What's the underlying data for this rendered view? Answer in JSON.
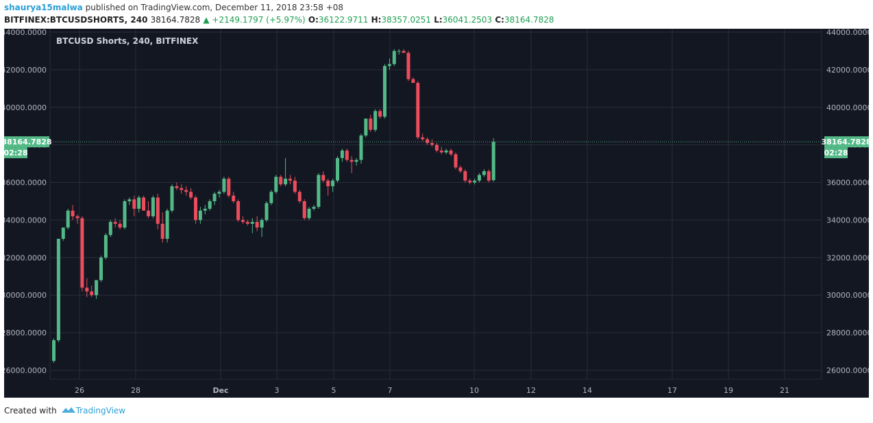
{
  "header": {
    "user": "shaurya15malwa",
    "published_text": "published on TradingView.com, December 11, 2018 23:58 +08",
    "symbol": "BITFINEX:BTCUSDSHORTS, 240",
    "last_price": "38164.7828",
    "change": "+2149.1797 (+5.97%)",
    "o_label": "O:",
    "o_value": "36122.9711",
    "h_label": "H:",
    "h_value": "38357.0251",
    "l_label": "L:",
    "l_value": "36041.2503",
    "c_label": "C:",
    "c_value": "38164.7828"
  },
  "footer": {
    "created_with": "Created with",
    "brand": "TradingView"
  },
  "colors": {
    "background": "#131722",
    "up": "#53b987",
    "down": "#eb4d5c",
    "grid": "#2a2e39",
    "text": "#b2b5be",
    "price_line": "#53b987"
  },
  "chart_data": {
    "type": "candlestick",
    "title": "BTCUSD Shorts, 240, BITFINEX",
    "ylim": [
      25500,
      44200
    ],
    "y_ticks": [
      "44000.0000",
      "42000.0000",
      "40000.0000",
      "38000.0000",
      "36000.0000",
      "34000.0000",
      "32000.0000",
      "30000.0000",
      "28000.0000",
      "26000.0000"
    ],
    "x_ticks": [
      "26",
      "28",
      "Dec",
      "3",
      "5",
      "7",
      "10",
      "12",
      "14",
      "17",
      "19",
      "21"
    ],
    "last_price_label": "38164.7828",
    "countdown_label": "02:28",
    "ohlc": [
      [
        26500,
        27700,
        26400,
        27600
      ],
      [
        27600,
        33000,
        27500,
        33000
      ],
      [
        33000,
        33600,
        32900,
        33600
      ],
      [
        33600,
        34600,
        33500,
        34500
      ],
      [
        34500,
        34800,
        34000,
        34200
      ],
      [
        34200,
        34300,
        33800,
        34100
      ],
      [
        34100,
        34200,
        30200,
        30400
      ],
      [
        30400,
        30900,
        29900,
        30200
      ],
      [
        30200,
        30500,
        29900,
        30000
      ],
      [
        30000,
        30800,
        29800,
        30800
      ],
      [
        30800,
        32100,
        30700,
        32000
      ],
      [
        32000,
        33300,
        31900,
        33200
      ],
      [
        33200,
        34000,
        33100,
        33900
      ],
      [
        33900,
        34100,
        33600,
        33800
      ],
      [
        33800,
        34000,
        33500,
        33600
      ],
      [
        33600,
        35100,
        33500,
        35000
      ],
      [
        35000,
        35200,
        34800,
        35100
      ],
      [
        35100,
        35300,
        34200,
        34600
      ],
      [
        34600,
        35300,
        34400,
        35200
      ],
      [
        35200,
        35300,
        34500,
        34500
      ],
      [
        34500,
        35000,
        34100,
        34200
      ],
      [
        34200,
        35300,
        34100,
        35200
      ],
      [
        35200,
        35400,
        33500,
        33800
      ],
      [
        33800,
        34400,
        32800,
        33000
      ],
      [
        33000,
        34600,
        32800,
        34500
      ],
      [
        34500,
        35900,
        34400,
        35800
      ],
      [
        35800,
        36000,
        35600,
        35700
      ],
      [
        35700,
        35900,
        35400,
        35600
      ],
      [
        35600,
        35800,
        35300,
        35500
      ],
      [
        35500,
        35700,
        35100,
        35200
      ],
      [
        35200,
        35300,
        33800,
        34000
      ],
      [
        34000,
        34700,
        33800,
        34500
      ],
      [
        34500,
        34800,
        34300,
        34600
      ],
      [
        34600,
        35100,
        34500,
        35000
      ],
      [
        35000,
        35500,
        34800,
        35400
      ],
      [
        35400,
        35600,
        35200,
        35500
      ],
      [
        35500,
        36300,
        35400,
        36200
      ],
      [
        36200,
        36300,
        35200,
        35300
      ],
      [
        35300,
        35500,
        34900,
        35000
      ],
      [
        35000,
        35100,
        33900,
        34000
      ],
      [
        34000,
        34200,
        33800,
        33900
      ],
      [
        33900,
        34000,
        33700,
        33800
      ],
      [
        33800,
        34100,
        33300,
        33900
      ],
      [
        33900,
        34200,
        33400,
        33600
      ],
      [
        33600,
        34100,
        33100,
        34000
      ],
      [
        34000,
        35000,
        33900,
        34900
      ],
      [
        34900,
        35600,
        34800,
        35500
      ],
      [
        35500,
        36400,
        35400,
        36300
      ],
      [
        36300,
        36400,
        35800,
        35900
      ],
      [
        35900,
        37300,
        35800,
        36200
      ],
      [
        36200,
        36400,
        35900,
        36100
      ],
      [
        36100,
        36300,
        35400,
        35500
      ],
      [
        35500,
        35600,
        34900,
        35000
      ],
      [
        35000,
        35100,
        34000,
        34100
      ],
      [
        34100,
        34700,
        34000,
        34600
      ],
      [
        34600,
        34800,
        34500,
        34700
      ],
      [
        34700,
        36500,
        34600,
        36400
      ],
      [
        36400,
        36600,
        36000,
        36100
      ],
      [
        36100,
        36200,
        35300,
        35800
      ],
      [
        35800,
        36200,
        35500,
        36100
      ],
      [
        36100,
        37400,
        36000,
        37300
      ],
      [
        37300,
        37800,
        37100,
        37700
      ],
      [
        37700,
        37800,
        37100,
        37200
      ],
      [
        37200,
        37400,
        36500,
        37100
      ],
      [
        37100,
        37300,
        36900,
        37200
      ],
      [
        37200,
        38600,
        37000,
        38500
      ],
      [
        38500,
        39400,
        38400,
        39400
      ],
      [
        39400,
        39600,
        38700,
        38800
      ],
      [
        38800,
        39900,
        38700,
        39800
      ],
      [
        39800,
        39900,
        39400,
        39500
      ],
      [
        39500,
        42300,
        39400,
        42200
      ],
      [
        42200,
        42600,
        42000,
        42300
      ],
      [
        42300,
        43100,
        42200,
        43000
      ],
      [
        43000,
        43100,
        42800,
        43000
      ],
      [
        43000,
        43100,
        42900,
        42900
      ],
      [
        42900,
        43000,
        41400,
        41500
      ],
      [
        41500,
        41600,
        41300,
        41300
      ],
      [
        41300,
        41400,
        38300,
        38400
      ],
      [
        38400,
        38600,
        38200,
        38300
      ],
      [
        38300,
        38400,
        38000,
        38100
      ],
      [
        38100,
        38300,
        37900,
        38000
      ],
      [
        38000,
        38100,
        37600,
        37700
      ],
      [
        37700,
        37900,
        37500,
        37600
      ],
      [
        37600,
        37800,
        37500,
        37700
      ],
      [
        37700,
        37800,
        37400,
        37500
      ],
      [
        37500,
        37600,
        36700,
        36800
      ],
      [
        36800,
        36900,
        36500,
        36600
      ],
      [
        36600,
        36700,
        36000,
        36100
      ],
      [
        36100,
        36200,
        35900,
        36000
      ],
      [
        36000,
        36200,
        35900,
        36100
      ],
      [
        36100,
        36500,
        36000,
        36400
      ],
      [
        36400,
        36700,
        36300,
        36600
      ],
      [
        36600,
        36700,
        36000,
        36100
      ],
      [
        36122.9711,
        38357.0251,
        36041.2503,
        38164.7828
      ]
    ]
  }
}
